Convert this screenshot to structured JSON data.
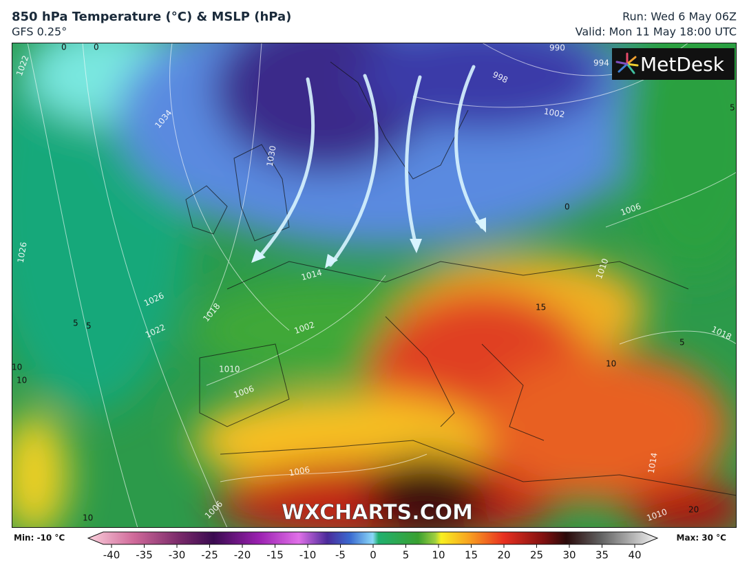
{
  "header": {
    "title": "850 hPa Temperature (°C) & MSLP (hPa)",
    "model": "GFS 0.25°",
    "run": "Run: Wed 6 May 06Z",
    "valid": "Valid: Mon 11 May 18:00 UTC"
  },
  "logo": "MetDesk",
  "watermark": "WXCHARTS.COM",
  "contour_labels": [
    "990",
    "994",
    "998",
    "1002",
    "1030",
    "1034",
    "1022",
    "1026",
    "1014",
    "1018",
    "1026",
    "1022",
    "1010",
    "1006",
    "1002",
    "1006",
    "1006",
    "1010",
    "1018",
    "1014",
    "1010",
    "1006",
    "0",
    "0",
    "0",
    "5",
    "5",
    "5",
    "5",
    "10",
    "10",
    "10",
    "10",
    "15",
    "20"
  ],
  "colorbar": {
    "min_label": "Min: -10 °C",
    "max_label": "Max: 30 °C",
    "lim": [
      -40,
      40
    ],
    "ticks": [
      -40,
      -35,
      -30,
      -25,
      -20,
      -15,
      -10,
      -5,
      0,
      5,
      10,
      15,
      20,
      25,
      30,
      35,
      40
    ]
  }
}
